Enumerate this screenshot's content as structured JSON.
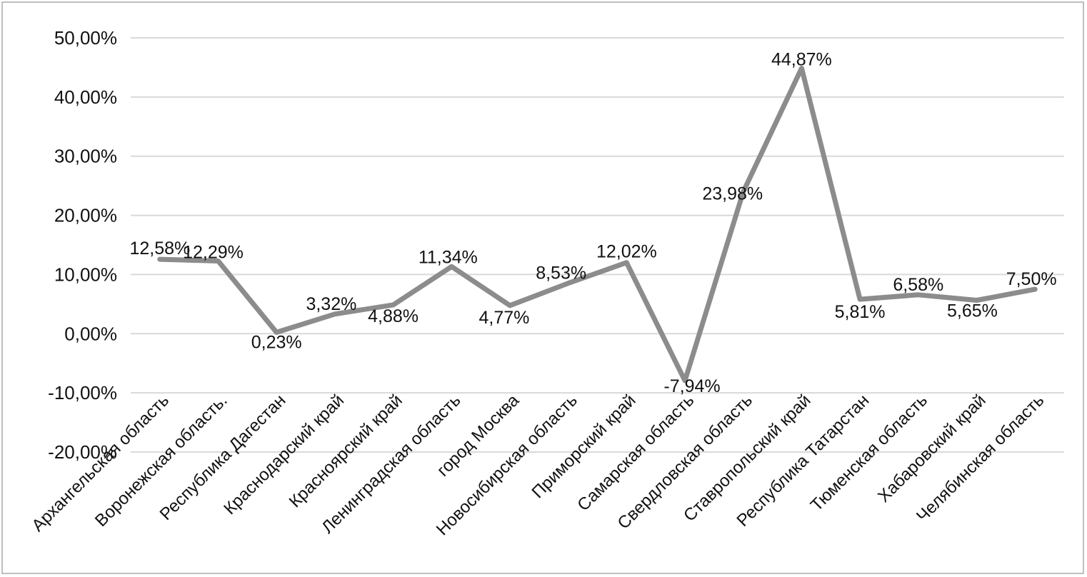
{
  "chart_data": {
    "type": "line",
    "title": "",
    "xlabel": "",
    "ylabel": "",
    "categories": [
      "Архангельская область",
      "Воронежская область.",
      "Республика Дагестан",
      "Краснодарский край",
      "Красноярский край",
      "Ленинградская область",
      "город Москва",
      "Новосибирская область",
      "Приморский край",
      "Самарская область",
      "Свердловская область",
      "Ставропольский край",
      "Республика Татарстан",
      "Тюменская область",
      "Хабаровский край",
      "Челябинская область"
    ],
    "series": [
      {
        "color": "#8c8c8c",
        "values": [
          12.58,
          12.29,
          0.23,
          3.32,
          4.88,
          11.34,
          4.77,
          8.53,
          12.02,
          -7.94,
          23.98,
          44.87,
          5.81,
          6.58,
          5.65,
          7.5
        ],
        "labels": [
          "12,58%",
          "12,29%",
          "0,23%",
          "3,32%",
          "4,88%",
          "11,34%",
          "4,77%",
          "8,53%",
          "12,02%",
          "-7,94%",
          "23,98%",
          "44,87%",
          "5,81%",
          "6,58%",
          "5,65%",
          "7,50%"
        ]
      }
    ],
    "yticks": [
      -20,
      -10,
      0,
      10,
      20,
      30,
      40,
      50
    ],
    "ytick_labels": [
      "-20,00%",
      "-10,00%",
      "0,00%",
      "10,00%",
      "20,00%",
      "30,00%",
      "40,00%",
      "50,00%"
    ],
    "ylim": [
      -20,
      50
    ],
    "grid": true,
    "legend": "none",
    "gridline_color": "#d9d9d9"
  }
}
